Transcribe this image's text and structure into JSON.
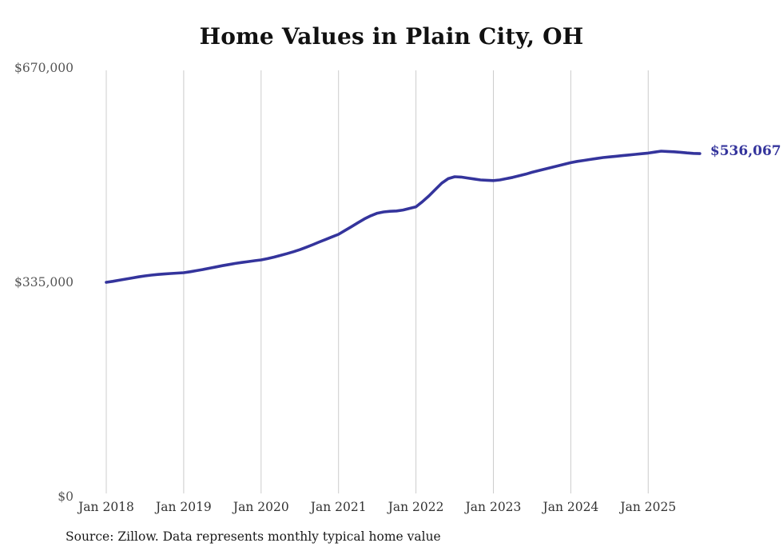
{
  "chart_data": {
    "type": "line",
    "title": "Home Values in Plain City, OH",
    "source_note": "Source: Zillow. Data represents monthly typical home value",
    "end_label": "$536,067",
    "last_value": 536067,
    "ylim": [
      0,
      670000
    ],
    "grid": "vertical-gridlines-on",
    "legend": "none",
    "line_color": "#34349c",
    "grid_color": "#cccccc",
    "y_tick_color": "#555555",
    "x_tick_color": "#333333",
    "x_tick_labels": [
      "Jan 2018",
      "Jan 2019",
      "Jan 2020",
      "Jan 2021",
      "Jan 2022",
      "Jan 2023",
      "Jan 2024",
      "Jan 2025"
    ],
    "y_ticks": [
      {
        "label": "$670,000",
        "value": 670000
      },
      {
        "label": "$335,000",
        "value": 335000
      },
      {
        "label": "$0",
        "value": 0
      }
    ],
    "series": [
      {
        "name": "Monthly typical home value",
        "months": [
          "Jan 2018",
          "Feb 2018",
          "Mar 2018",
          "Apr 2018",
          "May 2018",
          "Jun 2018",
          "Jul 2018",
          "Aug 2018",
          "Sep 2018",
          "Oct 2018",
          "Nov 2018",
          "Dec 2018",
          "Jan 2019",
          "Feb 2019",
          "Mar 2019",
          "Apr 2019",
          "May 2019",
          "Jun 2019",
          "Jul 2019",
          "Aug 2019",
          "Sep 2019",
          "Oct 2019",
          "Nov 2019",
          "Dec 2019",
          "Jan 2020",
          "Feb 2020",
          "Mar 2020",
          "Apr 2020",
          "May 2020",
          "Jun 2020",
          "Jul 2020",
          "Aug 2020",
          "Sep 2020",
          "Oct 2020",
          "Nov 2020",
          "Dec 2020",
          "Jan 2021",
          "Feb 2021",
          "Mar 2021",
          "Apr 2021",
          "May 2021",
          "Jun 2021",
          "Jul 2021",
          "Aug 2021",
          "Sep 2021",
          "Oct 2021",
          "Nov 2021",
          "Dec 2021",
          "Jan 2022",
          "Feb 2022",
          "Mar 2022",
          "Apr 2022",
          "May 2022",
          "Jun 2022",
          "Jul 2022",
          "Aug 2022",
          "Sep 2022",
          "Oct 2022",
          "Nov 2022",
          "Dec 2022",
          "Jan 2023",
          "Feb 2023",
          "Mar 2023",
          "Apr 2023",
          "May 2023",
          "Jun 2023",
          "Jul 2023",
          "Aug 2023",
          "Sep 2023",
          "Oct 2023",
          "Nov 2023",
          "Dec 2023",
          "Jan 2024",
          "Feb 2024",
          "Mar 2024",
          "Apr 2024",
          "May 2024",
          "Jun 2024",
          "Jul 2024",
          "Aug 2024",
          "Sep 2024",
          "Oct 2024",
          "Nov 2024",
          "Dec 2024",
          "Jan 2025",
          "Feb 2025",
          "Mar 2025",
          "Apr 2025",
          "May 2025",
          "Jun 2025",
          "Jul 2025",
          "Aug 2025",
          "Sep 2025"
        ],
        "values": [
          335000,
          336500,
          338200,
          340000,
          341800,
          343500,
          345000,
          346200,
          347200,
          348000,
          348800,
          349400,
          350000,
          351500,
          353200,
          355000,
          357000,
          359000,
          361000,
          362800,
          364500,
          366000,
          367400,
          368700,
          370000,
          372000,
          374400,
          377000,
          379800,
          382800,
          386000,
          389700,
          393700,
          398000,
          402000,
          406000,
          410000,
          416000,
          422000,
          428000,
          434000,
          439000,
          443000,
          445000,
          446000,
          446500,
          448000,
          450500,
          453000,
          461000,
          470000,
          480000,
          490000,
          497000,
          500000,
          499500,
          498000,
          496500,
          495000,
          494500,
          494000,
          495000,
          497000,
          499000,
          501500,
          504000,
          507000,
          509500,
          512000,
          514500,
          517000,
          519500,
          522000,
          524000,
          525500,
          527000,
          528500,
          530000,
          531000,
          532000,
          533000,
          534000,
          535000,
          536000,
          537000,
          538500,
          540000,
          539500,
          539000,
          538200,
          537300,
          536500,
          536067
        ]
      }
    ]
  }
}
